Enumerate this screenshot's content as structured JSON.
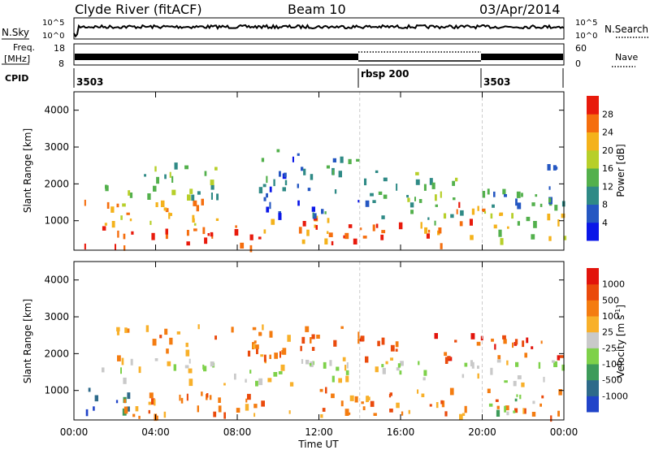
{
  "header": {
    "title": "Clyde River (fitACF)",
    "beam": "Beam 10",
    "date": "03/Apr/2014"
  },
  "panels": {
    "nsky": {
      "left_label": "N.Sky",
      "left_ticks": [
        "10^5",
        "10^0"
      ],
      "right_label": "N.Search",
      "right_ticks": [
        "10^5",
        "10^0"
      ]
    },
    "freq": {
      "left_label_1": "Freq.",
      "left_label_2": "[MHz]",
      "left_ticks": [
        "18",
        "8"
      ],
      "right_label": "Nave",
      "right_ticks": [
        "60",
        "0"
      ]
    },
    "cpid": {
      "label": "CPID",
      "segments": [
        {
          "text": "3503",
          "start_h": 0
        },
        {
          "text": "rbsp 200",
          "start_h": 14
        },
        {
          "text": "3503",
          "start_h": 20
        }
      ]
    }
  },
  "chart_data": [
    {
      "type": "heatmap",
      "name": "power",
      "ylabel": "Slant Range [km]",
      "xlabel": "Time UT",
      "xlim": [
        0,
        24
      ],
      "ylim": [
        200,
        4500
      ],
      "x_ticks": [
        "00:00",
        "04:00",
        "08:00",
        "12:00",
        "16:00",
        "20:00",
        "00:00"
      ],
      "y_ticks": [
        1000,
        2000,
        3000,
        4000
      ],
      "colorbar": {
        "label": "Power [dB]",
        "range": [
          0,
          32
        ],
        "ticks": [
          4,
          8,
          12,
          16,
          20,
          24,
          28
        ],
        "colors": [
          "#0b17e8",
          "#2557c2",
          "#2f8a86",
          "#53b04c",
          "#b7cf2a",
          "#f4b21b",
          "#f56e0e",
          "#e81a0c"
        ]
      },
      "bands": [
        {
          "t": [
            0.5,
            9
          ],
          "r": [
            300,
            900
          ],
          "value": 30
        },
        {
          "t": [
            0.5,
            7
          ],
          "r": [
            900,
            1700
          ],
          "value": 22
        },
        {
          "t": [
            1,
            7
          ],
          "r": [
            1700,
            2600
          ],
          "value": 14
        },
        {
          "t": [
            9,
            14
          ],
          "r": [
            300,
            1200
          ],
          "value": 26
        },
        {
          "t": [
            9,
            14
          ],
          "r": [
            1200,
            3000
          ],
          "value": 9
        },
        {
          "t": [
            14,
            18.5
          ],
          "r": [
            300,
            1000
          ],
          "value": 28
        },
        {
          "t": [
            14,
            19
          ],
          "r": [
            1000,
            2400
          ],
          "value": 12
        },
        {
          "t": [
            18.5,
            20
          ],
          "r": [
            600,
            1800
          ],
          "value": 26
        },
        {
          "t": [
            20,
            24
          ],
          "r": [
            400,
            1400
          ],
          "value": 18
        },
        {
          "t": [
            20,
            24
          ],
          "r": [
            1400,
            2600
          ],
          "value": 10
        }
      ]
    },
    {
      "type": "heatmap",
      "name": "velocity",
      "ylabel": "Slant Range [km]",
      "xlabel": "Time UT",
      "xlim": [
        0,
        24
      ],
      "ylim": [
        200,
        4500
      ],
      "x_ticks": [
        "00:00",
        "04:00",
        "08:00",
        "12:00",
        "16:00",
        "20:00",
        "00:00"
      ],
      "y_ticks": [
        1000,
        2000,
        3000,
        4000
      ],
      "colorbar": {
        "label": "Velocity [m s",
        "label_sup": "-1",
        "label_end": "]",
        "ticks": [
          "1000",
          "500",
          "100",
          "25",
          "-25",
          "-100",
          "-500",
          "-1000"
        ],
        "colors": [
          "#2144c9",
          "#2e6a8a",
          "#3d9b5a",
          "#7ed14a",
          "#c9c9c9",
          "#f8b02a",
          "#f47c10",
          "#ea4a0c",
          "#e2140c"
        ]
      },
      "bands": [
        {
          "t": [
            0.5,
            3
          ],
          "r": [
            400,
            1200
          ],
          "value": 1
        },
        {
          "t": [
            0.5,
            24
          ],
          "r": [
            1200,
            1900
          ],
          "value": 4
        },
        {
          "t": [
            2,
            24
          ],
          "r": [
            300,
            1100
          ],
          "value": 6
        },
        {
          "t": [
            2,
            14
          ],
          "r": [
            1900,
            2800
          ],
          "value": 6
        },
        {
          "t": [
            20,
            24
          ],
          "r": [
            400,
            900
          ],
          "value": 3
        },
        {
          "t": [
            14,
            24
          ],
          "r": [
            1900,
            2600
          ],
          "value": 7
        }
      ]
    }
  ]
}
